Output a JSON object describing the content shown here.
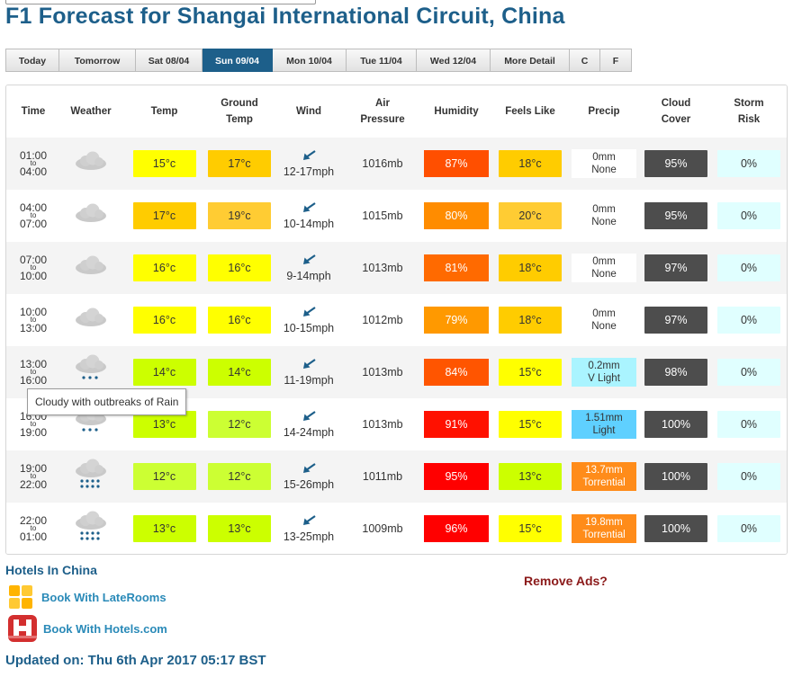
{
  "title": "F1 Forecast for Shangai International Circuit, China",
  "tabs": [
    {
      "label": "Today",
      "active": false
    },
    {
      "label": "Tomorrow",
      "active": false
    },
    {
      "label": "Sat 08/04",
      "active": false
    },
    {
      "label": "Sun 09/04",
      "active": true
    },
    {
      "label": "Mon 10/04",
      "active": false
    },
    {
      "label": "Tue 11/04",
      "active": false
    },
    {
      "label": "Wed 12/04",
      "active": false
    },
    {
      "label": "More Detail",
      "active": false
    }
  ],
  "units": [
    "C",
    "F"
  ],
  "headers": {
    "time": "Time",
    "weather": "Weather",
    "temp": "Temp",
    "ground_temp": "Ground Temp",
    "wind": "Wind",
    "air_pressure": "Air Pressure",
    "humidity": "Humidity",
    "feels_like": "Feels Like",
    "precip": "Precip",
    "cloud_cover": "Cloud Cover",
    "storm_risk": "Storm Risk"
  },
  "to_label": "to",
  "rows": [
    {
      "from": "01:00",
      "until": "04:00",
      "weather": "cloud-icon",
      "rain": 0,
      "temp": "15°c",
      "temp_color": "#ffff00",
      "ground": "17°c",
      "ground_color": "#ffcc00",
      "wind": "12-17mph",
      "pressure": "1016mb",
      "humidity": "87%",
      "humidity_color": "#ff4f00",
      "feels": "18°c",
      "feels_color": "#ffcc00",
      "precip_amount": "0mm",
      "precip_desc": "None",
      "precip_color": "#ffffff",
      "cloud": "95%",
      "storm": "0%"
    },
    {
      "from": "04:00",
      "until": "07:00",
      "weather": "cloud-icon",
      "rain": 0,
      "temp": "17°c",
      "temp_color": "#ffcc00",
      "ground": "19°c",
      "ground_color": "#ffcc33",
      "wind": "10-14mph",
      "pressure": "1015mb",
      "humidity": "80%",
      "humidity_color": "#ff8c00",
      "feels": "20°c",
      "feels_color": "#ffcc33",
      "precip_amount": "0mm",
      "precip_desc": "None",
      "precip_color": "#ffffff",
      "cloud": "95%",
      "storm": "0%"
    },
    {
      "from": "07:00",
      "until": "10:00",
      "weather": "cloud-icon",
      "rain": 0,
      "temp": "16°c",
      "temp_color": "#ffff00",
      "ground": "16°c",
      "ground_color": "#ffff00",
      "wind": "9-14mph",
      "pressure": "1013mb",
      "humidity": "81%",
      "humidity_color": "#ff6a00",
      "feels": "18°c",
      "feels_color": "#ffcc00",
      "precip_amount": "0mm",
      "precip_desc": "None",
      "precip_color": "#ffffff",
      "cloud": "97%",
      "storm": "0%"
    },
    {
      "from": "10:00",
      "until": "13:00",
      "weather": "cloud-icon",
      "rain": 0,
      "temp": "16°c",
      "temp_color": "#ffff00",
      "ground": "16°c",
      "ground_color": "#ffff00",
      "wind": "10-15mph",
      "pressure": "1012mb",
      "humidity": "79%",
      "humidity_color": "#ff9900",
      "feels": "18°c",
      "feels_color": "#ffcc00",
      "precip_amount": "0mm",
      "precip_desc": "None",
      "precip_color": "#ffffff",
      "cloud": "97%",
      "storm": "0%"
    },
    {
      "from": "13:00",
      "until": "16:00",
      "weather": "light-rain-cloud-icon",
      "rain": 1,
      "temp": "14°c",
      "temp_color": "#ccff00",
      "ground": "14°c",
      "ground_color": "#ccff00",
      "wind": "11-19mph",
      "pressure": "1013mb",
      "humidity": "84%",
      "humidity_color": "#ff5500",
      "feels": "15°c",
      "feels_color": "#ffff00",
      "precip_amount": "0.2mm",
      "precip_desc": "V Light",
      "precip_color": "#aaf4ff",
      "cloud": "98%",
      "storm": "0%"
    },
    {
      "from": "16:00",
      "until": "19:00",
      "weather": "rain-cloud-icon",
      "rain": 1,
      "temp": "13°c",
      "temp_color": "#ccff00",
      "ground": "12°c",
      "ground_color": "#ccff33",
      "wind": "14-24mph",
      "pressure": "1013mb",
      "humidity": "91%",
      "humidity_color": "#ff1100",
      "feels": "15°c",
      "feels_color": "#ffff00",
      "precip_amount": "1.51mm",
      "precip_desc": "Light",
      "precip_color": "#5fd0ff",
      "cloud": "100%",
      "storm": "0%"
    },
    {
      "from": "19:00",
      "until": "22:00",
      "weather": "heavy-rain-cloud-icon",
      "rain": 2,
      "temp": "12°c",
      "temp_color": "#ccff33",
      "ground": "12°c",
      "ground_color": "#ccff33",
      "wind": "15-26mph",
      "pressure": "1011mb",
      "humidity": "95%",
      "humidity_color": "#ff0000",
      "feels": "13°c",
      "feels_color": "#ccff00",
      "precip_amount": "13.7mm",
      "precip_desc": "Torrential",
      "precip_color": "#ff8c1a",
      "cloud": "100%",
      "storm": "0%"
    },
    {
      "from": "22:00",
      "until": "01:00",
      "weather": "heavy-rain-cloud-icon",
      "rain": 2,
      "temp": "13°c",
      "temp_color": "#ccff00",
      "ground": "13°c",
      "ground_color": "#ccff00",
      "wind": "13-25mph",
      "pressure": "1009mb",
      "humidity": "96%",
      "humidity_color": "#ff0000",
      "feels": "15°c",
      "feels_color": "#ffff00",
      "precip_amount": "19.8mm",
      "precip_desc": "Torrential",
      "precip_color": "#ff8c1a",
      "cloud": "100%",
      "storm": "0%"
    }
  ],
  "colors": {
    "cloud_box": "#4d4d4d",
    "storm_box": "#e0ffff",
    "brand": "#1d5f8a",
    "wind_arrow": "#1d5f8a"
  },
  "tooltip": "Cloudy with outbreaks of Rain",
  "hotels": {
    "title": "Hotels In China",
    "links": [
      {
        "label": "Book With LateRooms",
        "icon": "laterooms-logo-icon"
      },
      {
        "label": "Book With Hotels.com",
        "icon": "hotels-com-logo-icon"
      }
    ]
  },
  "remove_ads": "Remove Ads?",
  "updated": "Updated on: Thu 6th Apr 2017 05:17 BST"
}
